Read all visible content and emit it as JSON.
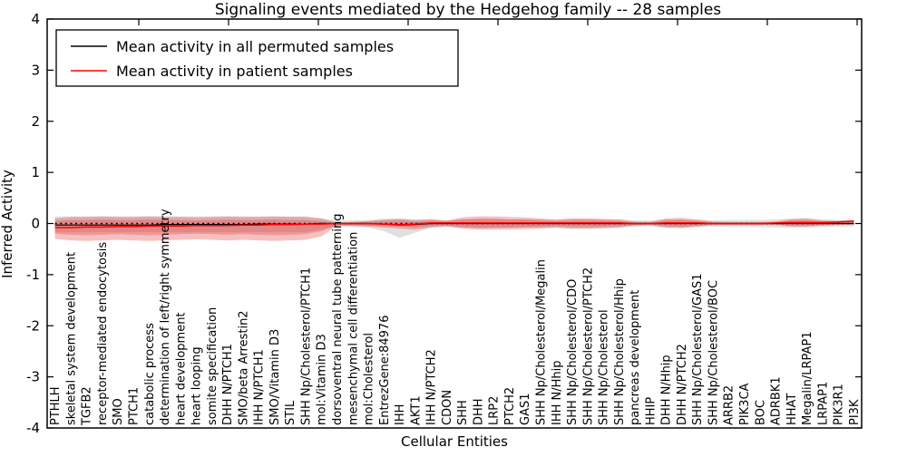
{
  "chart_data": {
    "type": "line",
    "title": "Signaling events mediated by the Hedgehog family -- 28 samples",
    "xlabel": "Cellular Entities",
    "ylabel": "Inferred Activity",
    "ylim": [
      -4,
      4
    ],
    "yticks": [
      4,
      3,
      2,
      1,
      0,
      -1,
      -2,
      -3,
      -4
    ],
    "grid": false,
    "legend_position": "upper left",
    "legend": [
      {
        "label": "Mean activity in all permuted samples",
        "color": "#000000"
      },
      {
        "label": "Mean activity in patient samples",
        "color": "#ff0000"
      }
    ],
    "colors": {
      "patient_line": "#ff0000",
      "permuted_line": "#000000",
      "zero_line": "#000000",
      "patient_band_outer": "rgba(225,45,45,0.30)",
      "patient_band_inner": "rgba(225,45,45,0.28)",
      "permuted_band": "rgba(130,130,130,0.25)",
      "axis": "#000000"
    },
    "categories": [
      "PTHLH",
      "skeletal system development",
      "TGFB2",
      "receptor-mediated endocytosis",
      "SMO",
      "PTCH1",
      "catabolic process",
      "determination of left/right symmetry",
      "heart development",
      "heart looping",
      "somite specification",
      "DHH N/PTCH1",
      "SMO/beta Arrestin2",
      "IHH N/PTCH1",
      "SMO/Vitamin D3",
      "STIL",
      "SHH Np/Cholesterol/PTCH1",
      "mol:Vitamin D3",
      "dorsoventral neural tube patterning",
      "mesenchymal cell differentiation",
      "mol:Cholesterol",
      "EntrezGene:84976",
      "IHH",
      "AKT1",
      "IHH N/PTCH2",
      "CDON",
      "SHH",
      "DHH",
      "LRP2",
      "PTCH2",
      "GAS1",
      "SHH Np/Cholesterol/Megalin",
      "IHH N/Hhip",
      "SHH Np/Cholesterol/CDO",
      "SHH Np/Cholesterol/PTCH2",
      "SHH Np/Cholesterol",
      "SHH Np/Cholesterol/Hhip",
      "pancreas development",
      "HHIP",
      "DHH N/Hhip",
      "DHH N/PTCH2",
      "SHH Np/Cholesterol/GAS1",
      "SHH Np/Cholesterol/BOC",
      "ARRB2",
      "PIK3CA",
      "BOC",
      "ADRBK1",
      "HHAT",
      "Megalin/LRPAP1",
      "LRPAP1",
      "PIK3R1",
      "PI3K"
    ],
    "series": [
      {
        "name": "Mean activity in all permuted samples",
        "color": "#000000",
        "values": [
          -0.03,
          -0.03,
          -0.03,
          -0.03,
          -0.03,
          -0.03,
          -0.03,
          -0.02,
          -0.02,
          -0.02,
          -0.02,
          -0.02,
          -0.02,
          -0.01,
          -0.01,
          -0.01,
          -0.01,
          0,
          0,
          0,
          0,
          -0.01,
          -0.03,
          -0.02,
          0,
          0,
          0,
          0,
          0,
          0,
          0,
          0,
          0,
          0,
          0,
          0,
          0,
          0,
          0,
          0,
          0,
          0,
          0,
          0,
          0,
          0,
          0,
          0,
          0,
          0,
          0,
          0
        ]
      },
      {
        "name": "Mean activity in patient samples",
        "color": "#ff0000",
        "values": [
          -0.08,
          -0.08,
          -0.07,
          -0.07,
          -0.06,
          -0.06,
          -0.05,
          -0.05,
          -0.05,
          -0.04,
          -0.04,
          -0.04,
          -0.03,
          -0.03,
          -0.02,
          -0.02,
          -0.01,
          -0.01,
          0,
          0,
          0,
          -0.01,
          -0.02,
          -0.01,
          0.01,
          0.01,
          0.01,
          0.01,
          0.01,
          0.01,
          0.01,
          0.01,
          0.01,
          0.01,
          0.01,
          0.01,
          0.01,
          0,
          0,
          0.01,
          0.01,
          0.01,
          0,
          0,
          0,
          0,
          0.01,
          0.02,
          0.02,
          0.02,
          0.03,
          0.05
        ]
      }
    ],
    "bands": [
      {
        "name": "permuted-spread",
        "color": "rgba(130,130,130,0.25)",
        "upper": [
          0.14,
          0.14,
          0.14,
          0.14,
          0.14,
          0.14,
          0.14,
          0.14,
          0.14,
          0.14,
          0.14,
          0.14,
          0.14,
          0.14,
          0.14,
          0.14,
          0.14,
          0.1,
          0.06,
          0.06,
          0.07,
          0.09,
          0.1,
          0.08,
          0.07,
          0.06,
          0.08,
          0.09,
          0.09,
          0.08,
          0.08,
          0.08,
          0.07,
          0.09,
          0.09,
          0.08,
          0.08,
          0.06,
          0.06,
          0.08,
          0.08,
          0.07,
          0.06,
          0.07,
          0.07,
          0.07,
          0.08,
          0.09,
          0.1,
          0.08,
          0.07,
          0.07
        ],
        "lower": [
          -0.17,
          -0.17,
          -0.17,
          -0.17,
          -0.17,
          -0.17,
          -0.17,
          -0.17,
          -0.17,
          -0.17,
          -0.17,
          -0.17,
          -0.17,
          -0.17,
          -0.17,
          -0.17,
          -0.17,
          -0.12,
          -0.06,
          -0.06,
          -0.08,
          -0.15,
          -0.28,
          -0.18,
          -0.08,
          -0.06,
          -0.08,
          -0.09,
          -0.09,
          -0.08,
          -0.08,
          -0.08,
          -0.08,
          -0.1,
          -0.1,
          -0.09,
          -0.08,
          -0.06,
          -0.06,
          -0.08,
          -0.08,
          -0.07,
          -0.06,
          -0.07,
          -0.07,
          -0.07,
          -0.08,
          -0.08,
          -0.08,
          -0.07,
          -0.06,
          -0.06
        ]
      },
      {
        "name": "patient-spread-outer",
        "color": "rgba(225,45,45,0.30)",
        "upper": [
          0.1,
          0.13,
          0.13,
          0.14,
          0.13,
          0.13,
          0.14,
          0.13,
          0.13,
          0.12,
          0.13,
          0.14,
          0.13,
          0.13,
          0.14,
          0.13,
          0.13,
          0.1,
          0.02,
          0.03,
          0.05,
          0.08,
          0.09,
          0.07,
          0.09,
          0.06,
          0.12,
          0.14,
          0.14,
          0.13,
          0.12,
          0.1,
          0.08,
          0.1,
          0.1,
          0.09,
          0.08,
          0.04,
          0.03,
          0.1,
          0.11,
          0.08,
          0.04,
          0.03,
          0.03,
          0.03,
          0.04,
          0.09,
          0.1,
          0.06,
          0.05,
          0.06
        ],
        "lower": [
          -0.3,
          -0.33,
          -0.34,
          -0.33,
          -0.32,
          -0.33,
          -0.34,
          -0.33,
          -0.32,
          -0.31,
          -0.32,
          -0.33,
          -0.32,
          -0.33,
          -0.34,
          -0.33,
          -0.32,
          -0.25,
          -0.05,
          -0.05,
          -0.06,
          -0.08,
          -0.1,
          -0.12,
          -0.08,
          -0.06,
          -0.1,
          -0.12,
          -0.12,
          -0.12,
          -0.11,
          -0.1,
          -0.08,
          -0.1,
          -0.1,
          -0.09,
          -0.08,
          -0.04,
          -0.03,
          -0.08,
          -0.09,
          -0.06,
          -0.03,
          -0.03,
          -0.03,
          -0.03,
          -0.03,
          -0.06,
          -0.06,
          -0.04,
          -0.03,
          -0.02
        ]
      },
      {
        "name": "patient-spread-inner",
        "color": "rgba(225,45,45,0.28)",
        "upper": [
          0.05,
          0.07,
          0.07,
          0.08,
          0.07,
          0.07,
          0.08,
          0.07,
          0.07,
          0.06,
          0.07,
          0.08,
          0.07,
          0.07,
          0.08,
          0.07,
          0.07,
          0.05,
          0.01,
          0.02,
          0.03,
          0.05,
          0.06,
          0.04,
          0.06,
          0.04,
          0.08,
          0.09,
          0.09,
          0.08,
          0.08,
          0.06,
          0.05,
          0.06,
          0.06,
          0.06,
          0.05,
          0.02,
          0.02,
          0.06,
          0.07,
          0.05,
          0.02,
          0.02,
          0.02,
          0.02,
          0.02,
          0.06,
          0.06,
          0.04,
          0.03,
          0.04
        ],
        "lower": [
          -0.2,
          -0.22,
          -0.23,
          -0.22,
          -0.21,
          -0.22,
          -0.23,
          -0.22,
          -0.21,
          -0.2,
          -0.21,
          -0.22,
          -0.21,
          -0.22,
          -0.23,
          -0.22,
          -0.21,
          -0.15,
          -0.03,
          -0.03,
          -0.04,
          -0.05,
          -0.06,
          -0.08,
          -0.05,
          -0.04,
          -0.07,
          -0.08,
          -0.08,
          -0.08,
          -0.07,
          -0.06,
          -0.05,
          -0.06,
          -0.06,
          -0.06,
          -0.05,
          -0.03,
          -0.02,
          -0.05,
          -0.06,
          -0.04,
          -0.02,
          -0.02,
          -0.02,
          -0.02,
          -0.02,
          -0.04,
          -0.04,
          -0.03,
          -0.02,
          -0.01
        ]
      }
    ],
    "zero_line": 0
  }
}
